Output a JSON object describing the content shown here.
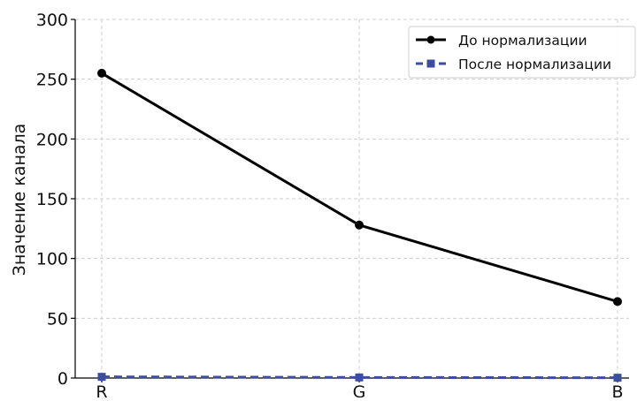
{
  "chart_data": {
    "type": "line",
    "categories": [
      "R",
      "G",
      "B"
    ],
    "series": [
      {
        "name": "До нормализации",
        "values": [
          255,
          128,
          64
        ],
        "color": "#000000",
        "marker": "circle"
      },
      {
        "name": "После нормализации",
        "values": [
          1.0,
          0.502,
          0.251
        ],
        "color": "#3b4ea0",
        "marker": "square",
        "line_style": "dashed"
      }
    ],
    "title": "",
    "xlabel": "",
    "ylabel": "Значение канала",
    "ylim": [
      0,
      300
    ],
    "yticks": [
      0,
      50,
      100,
      150,
      200,
      250,
      300
    ],
    "grid": true,
    "legend_position": "top-right"
  }
}
